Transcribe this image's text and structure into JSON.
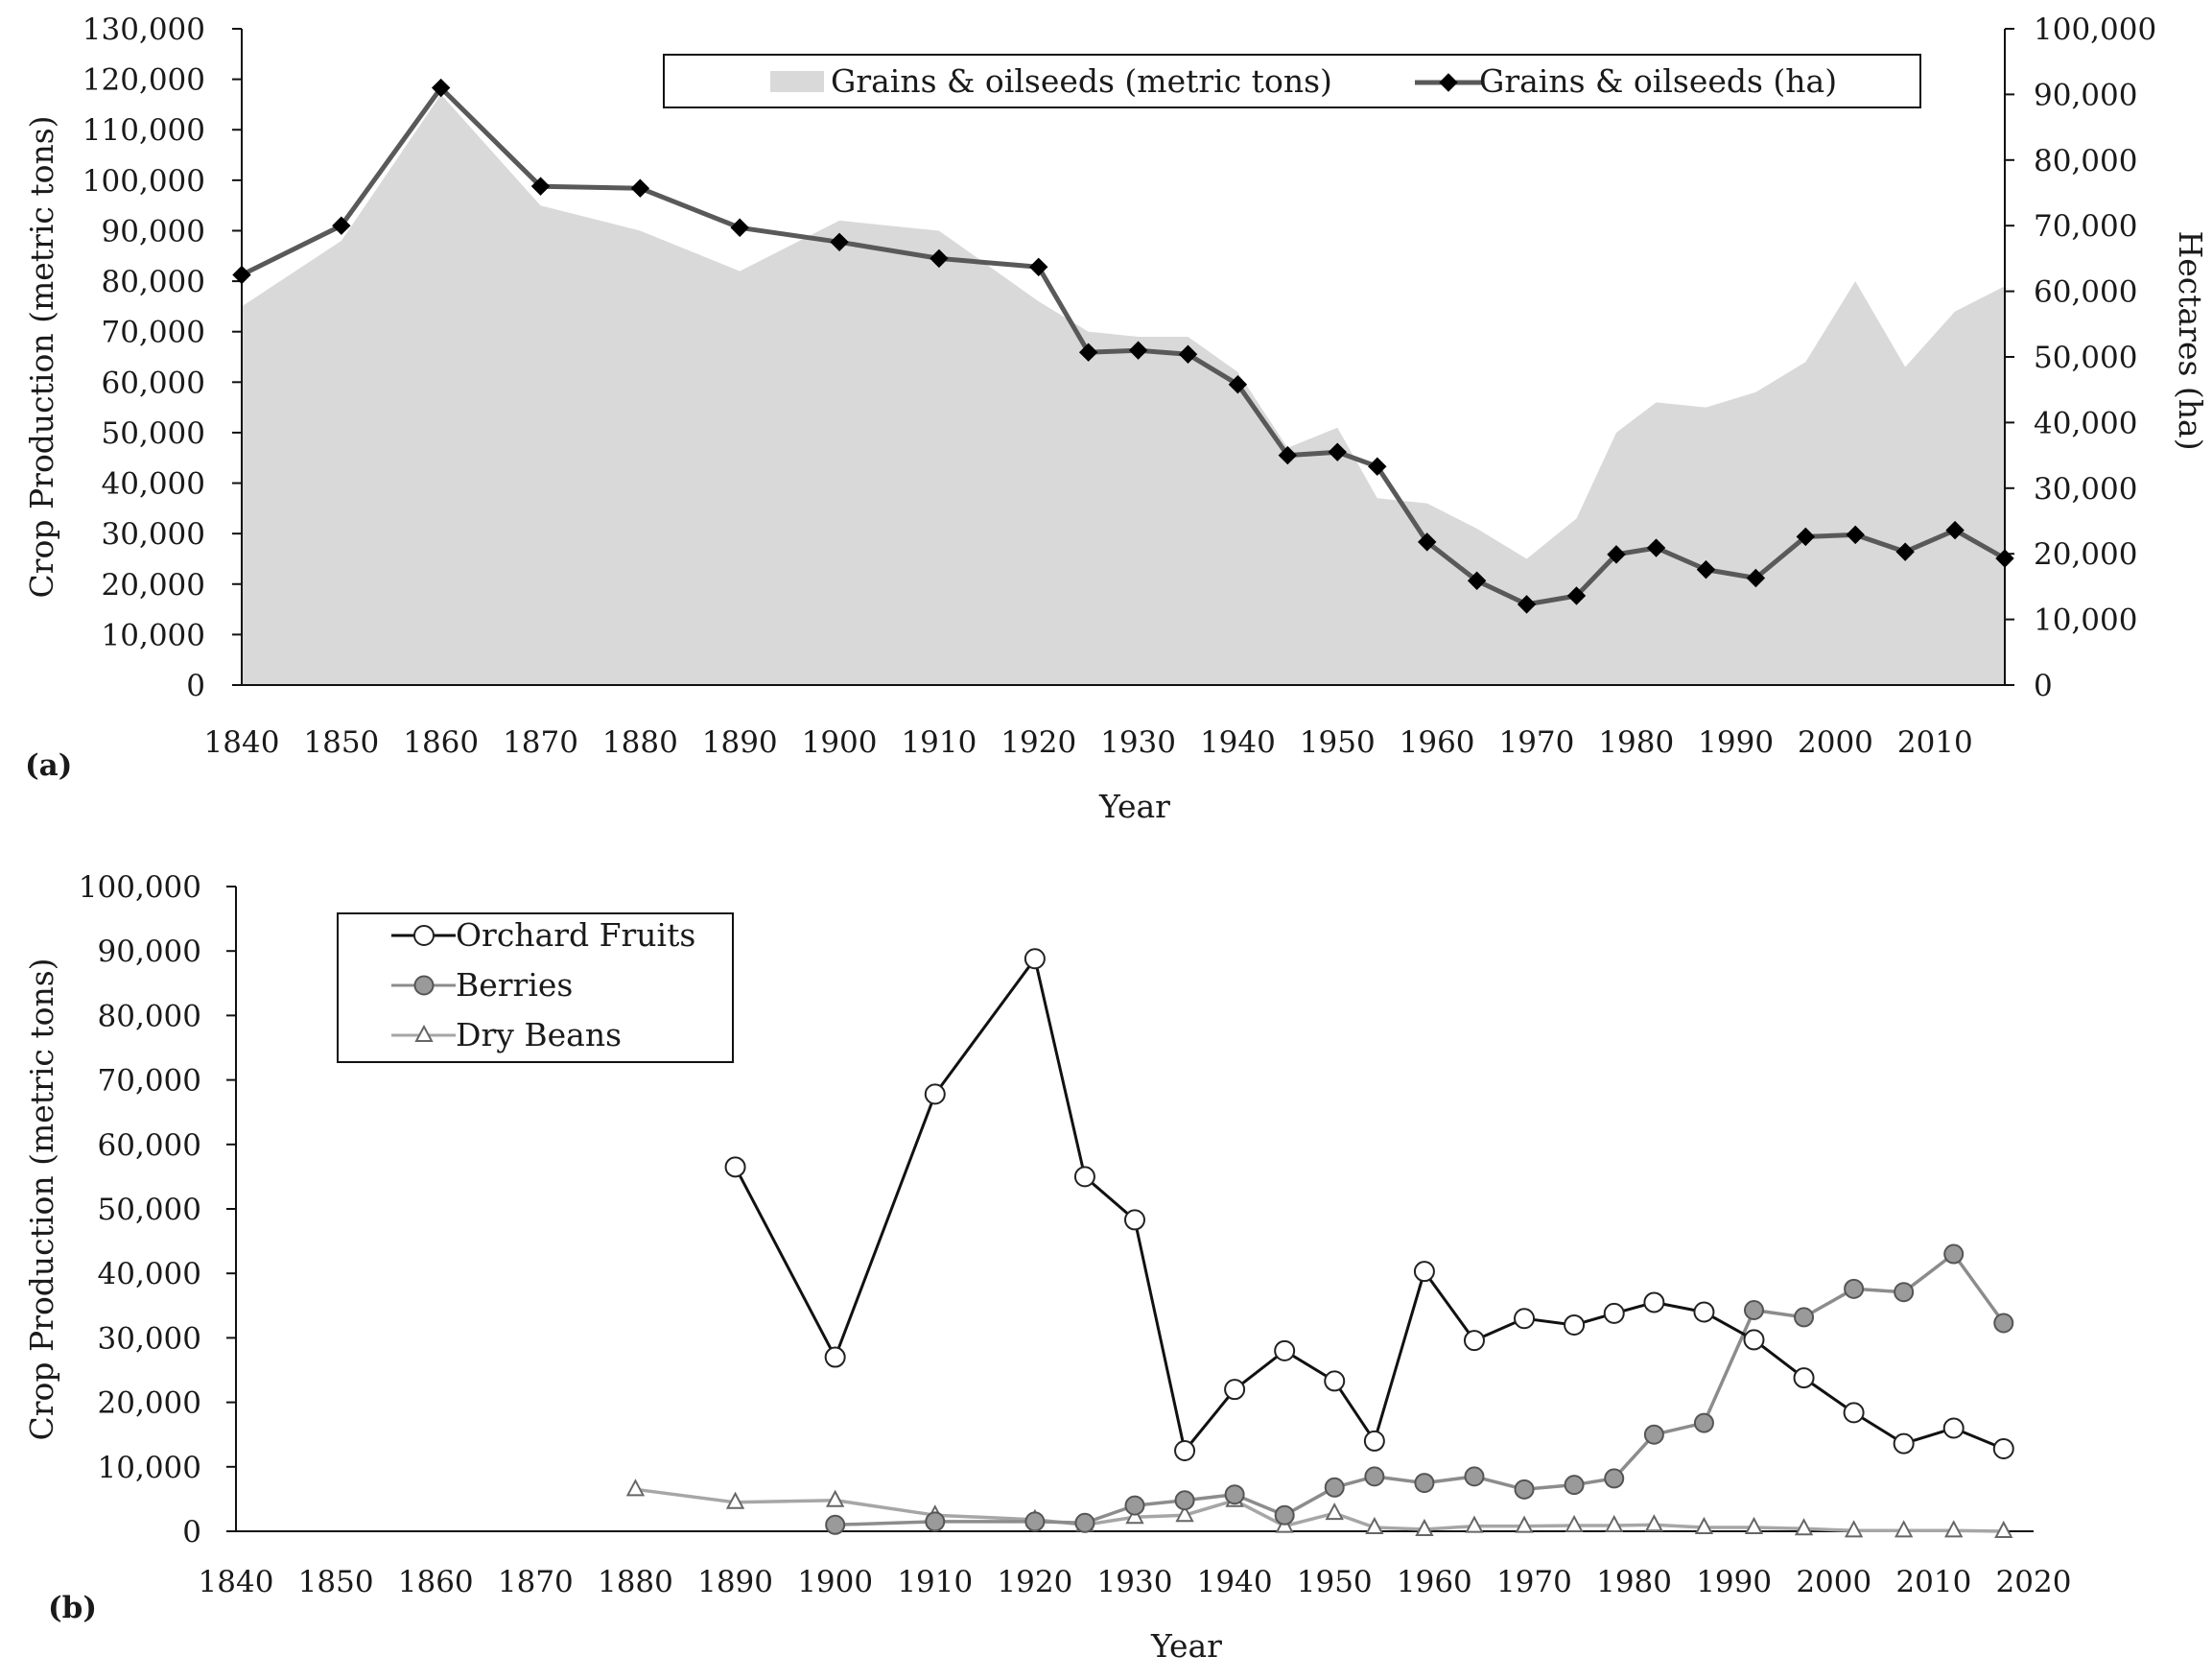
{
  "chart_data": [
    {
      "type": "area+line",
      "panel": "(a)",
      "xlabel": "Year",
      "ylabel": "Crop Production (metric tons)",
      "y2label": "Hectares (ha)",
      "xlim": [
        1840,
        2017
      ],
      "xticks": [
        "1840",
        "1850",
        "1860",
        "1870",
        "1880",
        "1890",
        "1900",
        "1910",
        "1920",
        "1930",
        "1940",
        "1950",
        "1960",
        "1970",
        "1980",
        "1990",
        "2000",
        "2010"
      ],
      "ylim": [
        0,
        130000
      ],
      "yticks": [
        "0",
        "10,000",
        "20,000",
        "30,000",
        "40,000",
        "50,000",
        "60,000",
        "70,000",
        "80,000",
        "90,000",
        "100,000",
        "110,000",
        "120,000",
        "130,000"
      ],
      "y2lim": [
        0,
        100000
      ],
      "y2ticks": [
        "0",
        "10,000",
        "20,000",
        "30,000",
        "40,000",
        "50,000",
        "60,000",
        "70,000",
        "80,000",
        "90,000",
        "100,000"
      ],
      "series": [
        {
          "name": "Grains & oilseeds (metric tons)",
          "kind": "area",
          "axis": "left",
          "color": "#d9d9d9",
          "x": [
            1840,
            1850,
            1860,
            1870,
            1880,
            1890,
            1900,
            1910,
            1920,
            1925,
            1930,
            1935,
            1940,
            1945,
            1950,
            1954,
            1959,
            1964,
            1969,
            1974,
            1978,
            1982,
            1987,
            1992,
            1997,
            2002,
            2007,
            2012,
            2017
          ],
          "values": [
            75000,
            88000,
            117000,
            95000,
            90000,
            82000,
            92000,
            90000,
            76000,
            70000,
            69000,
            69000,
            62000,
            47000,
            51000,
            37000,
            36000,
            31000,
            25000,
            33000,
            50000,
            56000,
            55000,
            58000,
            64000,
            80000,
            63000,
            74000,
            79000
          ]
        },
        {
          "name": "Grains & oilseeds (ha)",
          "kind": "line",
          "axis": "right",
          "color": "#595959",
          "marker": "diamond",
          "x": [
            1840,
            1850,
            1860,
            1870,
            1880,
            1890,
            1900,
            1910,
            1920,
            1925,
            1930,
            1935,
            1940,
            1945,
            1950,
            1954,
            1959,
            1964,
            1969,
            1974,
            1978,
            1982,
            1987,
            1992,
            1997,
            2002,
            2007,
            2012,
            2017
          ],
          "values": [
            62500,
            70000,
            91000,
            76000,
            75700,
            69700,
            67500,
            65000,
            63700,
            50700,
            51000,
            50400,
            45800,
            35000,
            35500,
            33300,
            21800,
            15900,
            12300,
            13600,
            19900,
            20900,
            17600,
            16300,
            22600,
            22900,
            20300,
            23600,
            19300
          ]
        }
      ]
    },
    {
      "type": "line",
      "panel": "(b)",
      "xlabel": "Year",
      "ylabel": "Crop Production (metric tons)",
      "xlim": [
        1840,
        2020
      ],
      "xticks": [
        "1840",
        "1850",
        "1860",
        "1870",
        "1880",
        "1890",
        "1900",
        "1910",
        "1920",
        "1930",
        "1940",
        "1950",
        "1960",
        "1970",
        "1980",
        "1990",
        "2000",
        "2010",
        "2020"
      ],
      "ylim": [
        0,
        100000
      ],
      "yticks": [
        "0",
        "10,000",
        "20,000",
        "30,000",
        "40,000",
        "50,000",
        "60,000",
        "70,000",
        "80,000",
        "90,000",
        "100,000"
      ],
      "series": [
        {
          "name": "Orchard Fruits",
          "color": "#111111",
          "marker": "open-circle",
          "x": [
            1890,
            1900,
            1910,
            1920,
            1925,
            1930,
            1935,
            1940,
            1945,
            1950,
            1954,
            1959,
            1964,
            1969,
            1974,
            1978,
            1982,
            1987,
            1992,
            1997,
            2002,
            2007,
            2012,
            2017
          ],
          "values": [
            56500,
            27000,
            67800,
            88800,
            55000,
            48300,
            12500,
            22000,
            28000,
            23300,
            14000,
            40300,
            29600,
            33000,
            32000,
            33800,
            35500,
            34000,
            29700,
            23800,
            18400,
            13600,
            16000,
            12800
          ]
        },
        {
          "name": "Berries",
          "color": "#8c8c8c",
          "marker": "filled-circle",
          "x": [
            1900,
            1910,
            1920,
            1925,
            1930,
            1935,
            1940,
            1945,
            1950,
            1954,
            1959,
            1964,
            1969,
            1974,
            1978,
            1982,
            1987,
            1992,
            1997,
            2002,
            2007,
            2012,
            2017
          ],
          "values": [
            1000,
            1500,
            1500,
            1300,
            4000,
            4800,
            5700,
            2500,
            6800,
            8500,
            7500,
            8500,
            6500,
            7200,
            8200,
            15000,
            16800,
            34300,
            33200,
            37600,
            37100,
            43000,
            32300
          ]
        },
        {
          "name": "Dry Beans",
          "color": "#a6a6a6",
          "marker": "open-triangle",
          "x": [
            1880,
            1890,
            1900,
            1910,
            1920,
            1925,
            1930,
            1935,
            1940,
            1945,
            1950,
            1954,
            1959,
            1964,
            1969,
            1974,
            1978,
            1982,
            1987,
            1992,
            1997,
            2002,
            2007,
            2012,
            2017
          ],
          "values": [
            6500,
            4500,
            4800,
            2500,
            1800,
            1000,
            2200,
            2500,
            4800,
            800,
            2800,
            600,
            300,
            800,
            800,
            900,
            900,
            1000,
            600,
            600,
            400,
            100,
            100,
            100,
            0
          ]
        }
      ]
    }
  ]
}
